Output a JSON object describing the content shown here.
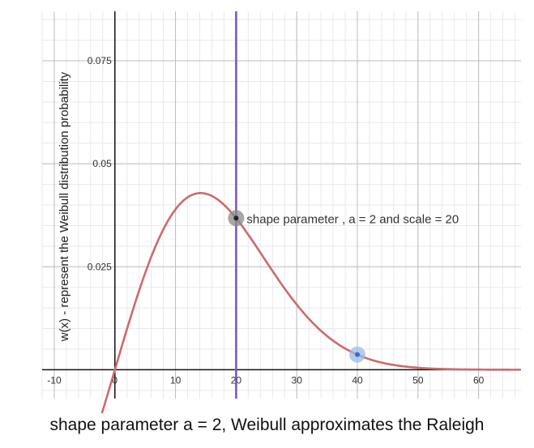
{
  "chart_data": {
    "type": "line",
    "ylabel": "w(x) - represent the Weibull distribution probability",
    "xlabel": "",
    "caption": "shape parameter a = 2, Weibull approximates the Raleigh",
    "xlim": [
      -12,
      67
    ],
    "ylim": [
      -0.007,
      0.087
    ],
    "x_ticks": [
      -10,
      0,
      10,
      20,
      30,
      40,
      50,
      60
    ],
    "x_tick_labels": [
      "-10",
      "0",
      "10",
      "20",
      "30",
      "40",
      "50",
      "60"
    ],
    "y_ticks": [
      0.025,
      0.05,
      0.075
    ],
    "y_tick_labels": [
      "0.025",
      "0.05",
      "0.075"
    ],
    "grid": true,
    "minor_grid": true,
    "series": [
      {
        "function": "weibull_pdf",
        "shape": 2,
        "scale": 20,
        "color": "#cc6b6b"
      }
    ],
    "vertical_line": {
      "x": 20,
      "color": "#7e57c2"
    },
    "points": [
      {
        "x": 20,
        "y": 0.0368,
        "color": "#222222",
        "halo": "#8a8a8a"
      },
      {
        "x": 40,
        "y": 0.0037,
        "color": "#2f6fd6",
        "halo": "#9fbbe6"
      }
    ],
    "annotation": {
      "text": "shape parameter , a = 2 and scale = 20",
      "x": 20,
      "y": 0.0368
    }
  }
}
